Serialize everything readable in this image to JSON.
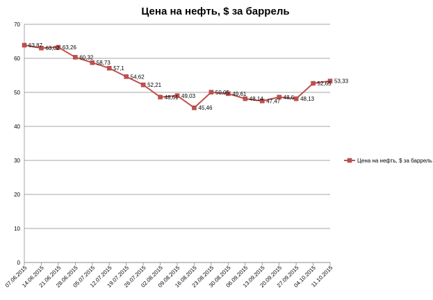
{
  "chart_data": {
    "type": "line",
    "title": "Цена на нефть, $ за баррель",
    "categories": [
      "07.06.2015",
      "14.06.2015",
      "21.06.2015",
      "28.06.2015",
      "05.07.2015",
      "12.07.2015",
      "19.07.2015",
      "26.07.2015",
      "02.08.2015",
      "09.08.2015",
      "16.08.2015",
      "23.08.2015",
      "30.08.2015",
      "06.09.2015",
      "13.09.2015",
      "20.09.2015",
      "27.09.2015",
      "04.10.2015",
      "11.10.2015"
    ],
    "series": [
      {
        "name": "Цена на нефть, $ за баррель",
        "values": [
          63.87,
          63.02,
          63.26,
          60.32,
          58.73,
          57.1,
          54.62,
          52.21,
          48.61,
          49.03,
          45.46,
          50.05,
          49.61,
          48.14,
          47.47,
          48.6,
          48.13,
          52.65,
          53.33
        ],
        "labels": [
          "63,87",
          "63,02",
          "63,26",
          "60,32",
          "58,73",
          "57,1",
          "54,62",
          "52,21",
          "48,61",
          "49,03",
          "45,46",
          "50,05",
          "49,61",
          "48,14",
          "47,47",
          "48,6",
          "48,13",
          "52,65",
          "53,33"
        ],
        "color": "#C0504D"
      }
    ],
    "ylim": [
      0,
      70
    ],
    "yticks": [
      0,
      10,
      20,
      30,
      40,
      50,
      60,
      70
    ],
    "grid": true,
    "legend": "right"
  }
}
